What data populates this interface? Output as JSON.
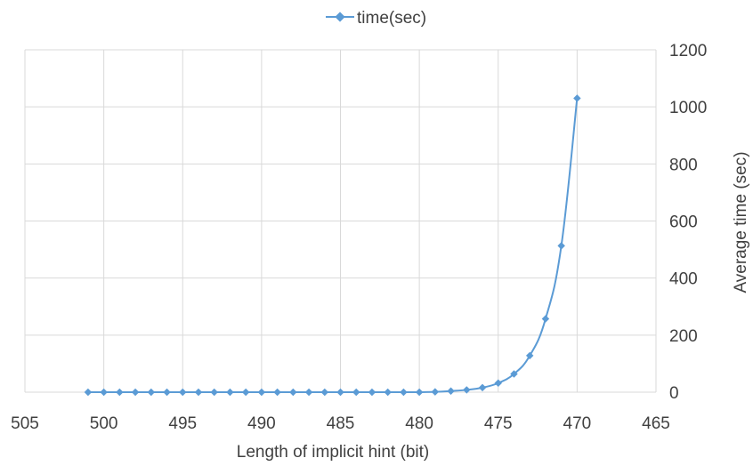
{
  "chart_data": {
    "type": "line",
    "title": "",
    "xlabel": "Length of implicit hint (bit)",
    "ylabel": "Average time (sec)",
    "xlim": [
      505,
      465
    ],
    "x_reversed": true,
    "ylim": [
      0,
      1200
    ],
    "y_axis_side": "right",
    "grid": true,
    "legend_position": "top-center",
    "x_ticks": [
      "505",
      "500",
      "495",
      "490",
      "485",
      "480",
      "475",
      "470",
      "465"
    ],
    "y_ticks": [
      "0",
      "200",
      "400",
      "600",
      "800",
      "1000",
      "1200"
    ],
    "series": [
      {
        "name": "time(sec)",
        "color": "#5b9bd5",
        "x": [
          501,
          500,
          499,
          498,
          497,
          496,
          495,
          494,
          493,
          492,
          491,
          490,
          489,
          488,
          487,
          486,
          485,
          484,
          483,
          482,
          481,
          480,
          479,
          478,
          477,
          476,
          475,
          474,
          473,
          472,
          471,
          470
        ],
        "y": [
          0,
          0,
          0,
          0,
          0,
          0,
          0,
          0,
          0,
          0,
          0,
          0,
          0,
          0,
          0,
          0,
          0,
          0,
          0,
          0,
          0,
          0,
          1,
          4,
          8,
          16,
          32,
          64,
          128,
          257,
          513,
          1030
        ]
      }
    ]
  }
}
